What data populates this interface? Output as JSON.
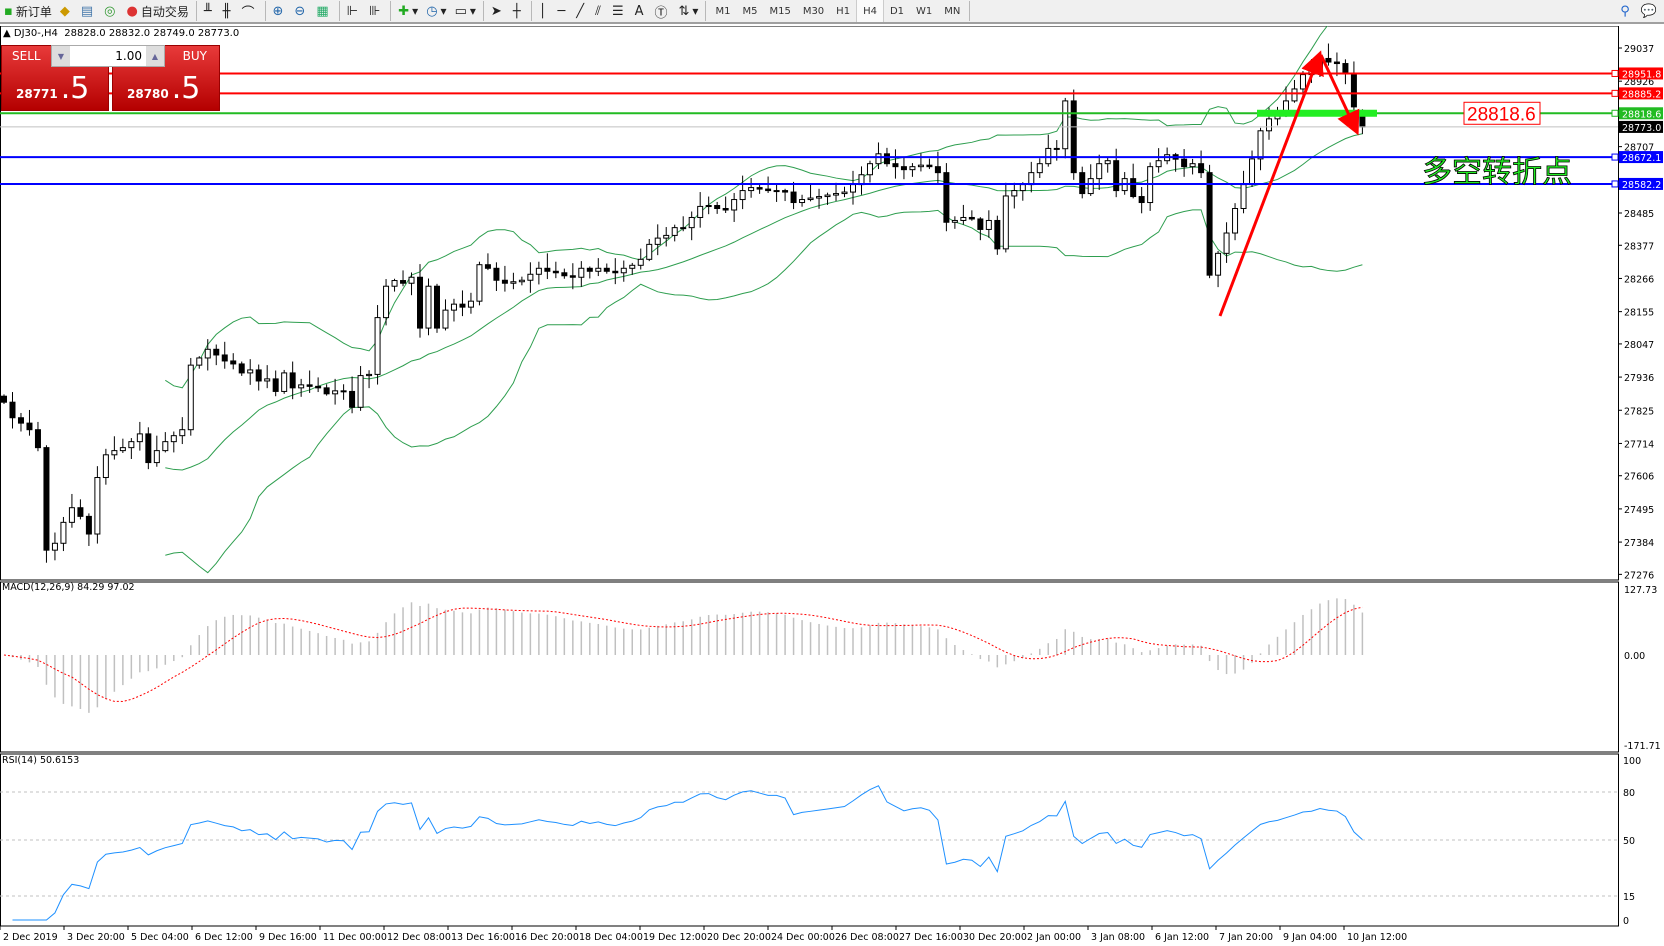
{
  "toolbar": {
    "new_order": "新订单",
    "auto_trading": "自动交易",
    "timeframes": [
      "M1",
      "M5",
      "M15",
      "M30",
      "H1",
      "H4",
      "D1",
      "W1",
      "MN"
    ],
    "active_timeframe": "H4"
  },
  "chart_header": {
    "symbol": "DJ30-,H4",
    "ohlc": "28828.0 28832.0 28749.0 28773.0"
  },
  "one_click": {
    "sell_label": "SELL",
    "buy_label": "BUY",
    "lot": "1.00",
    "sell_big": "28771",
    "sell_small": ".5",
    "buy_big": "28780",
    "buy_small": ".5"
  },
  "chart": {
    "price_ticks": [
      29037.0,
      28926.0,
      28707.0,
      28485.0,
      28377.0,
      28266.0,
      28155.0,
      28047.0,
      27936.0,
      27825.0,
      27714.0,
      27606.0,
      27495.0,
      27384.0,
      27276.0
    ],
    "closes": [
      27852,
      27800,
      27782,
      27760,
      27700,
      27357,
      27380,
      27450,
      27499,
      27470,
      27411,
      27600,
      27676,
      27690,
      27700,
      27720,
      27746,
      27650,
      27690,
      27720,
      27740,
      27760,
      27976,
      28000,
      28029,
      28010,
      27990,
      27980,
      27950,
      27960,
      27923,
      27930,
      27888,
      27950,
      27900,
      27910,
      27905,
      27900,
      27880,
      27890,
      27888,
      27835,
      27941,
      27945,
      28135,
      28240,
      28259,
      28250,
      28270,
      28100,
      28240,
      28100,
      28160,
      28180,
      28170,
      28190,
      28312,
      28300,
      28260,
      28250,
      28255,
      28260,
      28280,
      28300,
      28290,
      28285,
      28275,
      28270,
      28300,
      28290,
      28300,
      28290,
      28285,
      28300,
      28310,
      28330,
      28380,
      28401,
      28410,
      28436,
      28436,
      28470,
      28507,
      28510,
      28500,
      28495,
      28530,
      28560,
      28570,
      28565,
      28560,
      28560,
      28555,
      28520,
      28530,
      28535,
      28540,
      28545,
      28550,
      28555,
      28580,
      28613,
      28650,
      28683,
      28650,
      28640,
      28630,
      28640,
      28645,
      28640,
      28620,
      28454,
      28460,
      28470,
      28465,
      28430,
      28460,
      28365,
      28542,
      28560,
      28580,
      28620,
      28650,
      28701,
      28700,
      28860,
      28620,
      28550,
      28600,
      28650,
      28660,
      28560,
      28600,
      28540,
      28520,
      28640,
      28660,
      28680,
      28665,
      28640,
      28650,
      28620,
      28277,
      28350,
      28418,
      28500,
      28580,
      28666,
      28760,
      28800,
      28820,
      28860,
      28900,
      28948,
      28960,
      29002,
      28990,
      28985,
      28950,
      28840,
      28773
    ],
    "last_bar": {
      "open": 28828.0,
      "high": 28832.0,
      "low": 28749.0,
      "close": 28773.0
    },
    "hlines": [
      {
        "price": "28951.8",
        "color": "#ff0000"
      },
      {
        "price": "28885.2",
        "color": "#ff0000"
      },
      {
        "price": "28818.6",
        "color": "#22bb22"
      },
      {
        "price": "28773.0",
        "color": "#000000",
        "bid": true
      },
      {
        "price": "28672.1",
        "color": "#0000ff"
      },
      {
        "price": "28582.2",
        "color": "#0000ff"
      }
    ],
    "annotation_price": "28818.6",
    "annotation_text": "多空转折点",
    "bands_color": "#2e9e4f",
    "macd": {
      "title": "MACD(12,26,9) 84.29 97.02",
      "ticks": [
        "127.73",
        "0.00",
        "-171.71"
      ]
    },
    "rsi": {
      "title": "RSI(14) 50.6153",
      "ticks": [
        "100",
        "80",
        "50",
        "15",
        "0"
      ]
    },
    "time_labels": [
      "2 Dec 2019",
      "3 Dec 20:00",
      "5 Dec 04:00",
      "6 Dec 12:00",
      "9 Dec 16:00",
      "11 Dec 00:00",
      "12 Dec 08:00",
      "13 Dec 16:00",
      "16 Dec 20:00",
      "18 Dec 04:00",
      "19 Dec 12:00",
      "20 Dec 20:00",
      "24 Dec 00:00",
      "26 Dec 08:00",
      "27 Dec 16:00",
      "30 Dec 20:00",
      "2 Jan 00:00",
      "3 Jan 08:00",
      "6 Jan 12:00",
      "7 Jan 20:00",
      "9 Jan 04:00",
      "10 Jan 12:00"
    ]
  }
}
